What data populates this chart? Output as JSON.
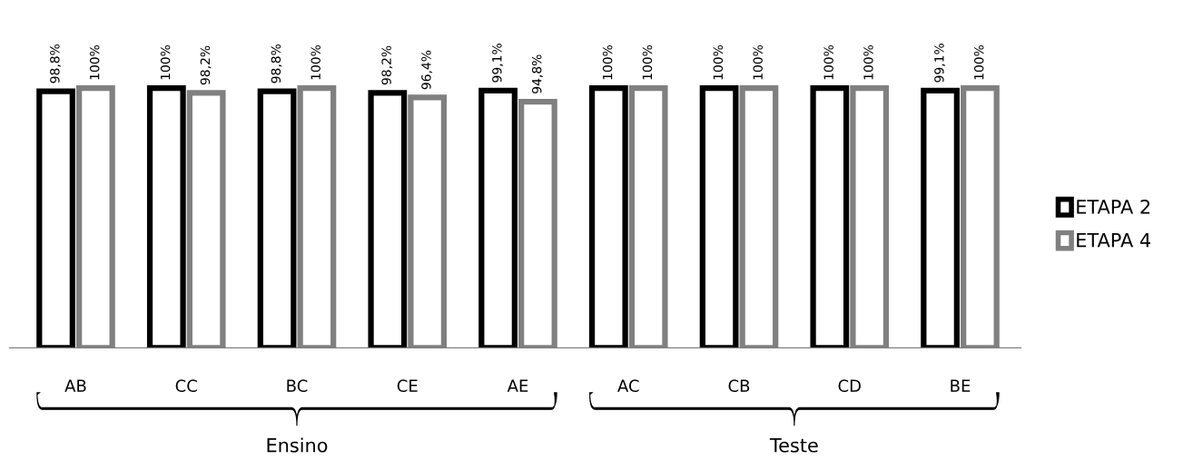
{
  "chart_data": {
    "type": "bar",
    "categories": [
      "AB",
      "CC",
      "BC",
      "CE",
      "AE",
      "AC",
      "CB",
      "CD",
      "BE"
    ],
    "series": [
      {
        "name": "ETAPA 2",
        "color": "#000000",
        "values": [
          98.8,
          100,
          98.8,
          98.2,
          99.1,
          100,
          100,
          100,
          99.1
        ],
        "value_labels": [
          "98,8%",
          "100%",
          "98,8%",
          "98,2%",
          "99,1%",
          "100%",
          "100%",
          "100%",
          "99,1%"
        ]
      },
      {
        "name": "ETAPA 4",
        "color": "#808080",
        "values": [
          100,
          98.2,
          100,
          96.4,
          94.8,
          100,
          100,
          100,
          100
        ],
        "value_labels": [
          "100%",
          "98,2%",
          "100%",
          "96,4%",
          "94,8%",
          "100%",
          "100%",
          "100%",
          "100%"
        ]
      }
    ],
    "annotations": [
      "Ensino",
      "Teste"
    ],
    "legend": "right",
    "grid": false
  }
}
